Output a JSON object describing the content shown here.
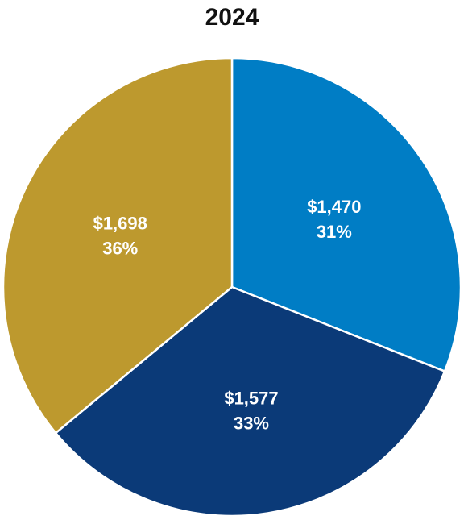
{
  "chart_data": {
    "type": "pie",
    "title": "2024",
    "slices": [
      {
        "value_label": "$1,470",
        "value": 1470,
        "percent_label": "31%",
        "percent": 31,
        "color": "#007dc5"
      },
      {
        "value_label": "$1,577",
        "value": 1577,
        "percent_label": "33%",
        "percent": 33,
        "color": "#0b3a78"
      },
      {
        "value_label": "$1,698",
        "value": 1698,
        "percent_label": "36%",
        "percent": 36,
        "color": "#bd992e"
      }
    ],
    "start": "12 o'clock",
    "direction": "clockwise",
    "slice_border_color": "#ffffff"
  }
}
